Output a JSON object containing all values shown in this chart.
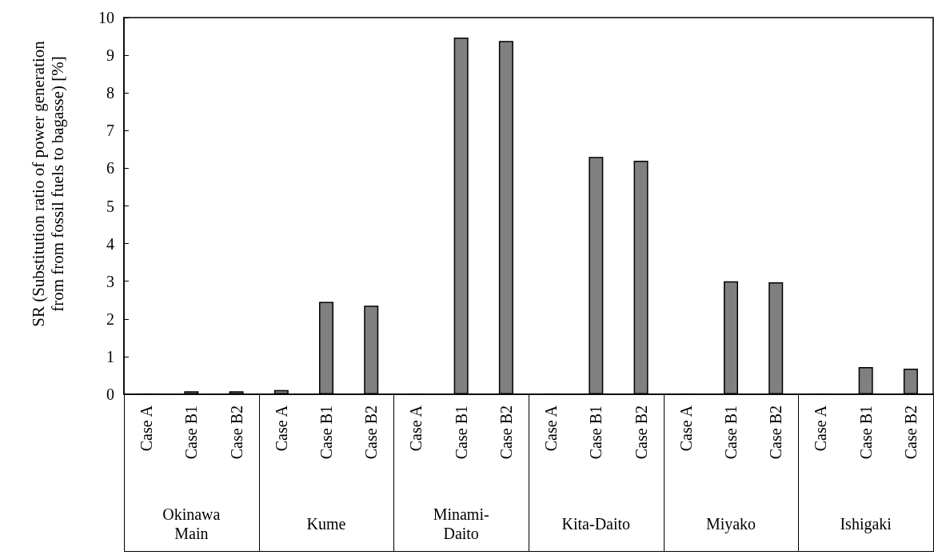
{
  "chart_data": {
    "type": "bar",
    "ylabel": "SR (Substitution ratio of power generation from from fossil fuels to bagasse) [%]",
    "categories": [
      "Case A",
      "Case B1",
      "Case B2",
      "Case A",
      "Case B1",
      "Case B2",
      "Case A",
      "Case B1",
      "Case B2",
      "Case A",
      "Case B1",
      "Case B2",
      "Case A",
      "Case B1",
      "Case B2",
      "Case A",
      "Case B1",
      "Case B2"
    ],
    "values": [
      0.01,
      0.08,
      0.08,
      0.11,
      2.45,
      2.35,
      0,
      9.47,
      9.38,
      0,
      6.3,
      6.2,
      0,
      3.0,
      2.97,
      0,
      0.72,
      0.68
    ],
    "color": "#808080",
    "annotations": [
      "Okinawa Main",
      "Kume",
      "Minami-Daito",
      "Kita-Daito",
      "Miyako",
      "Ishigaki"
    ],
    "ylim": [
      0,
      10
    ],
    "yticks": [
      0,
      1,
      2,
      3,
      4,
      5,
      6,
      7,
      8,
      9,
      10
    ],
    "grid": false
  }
}
